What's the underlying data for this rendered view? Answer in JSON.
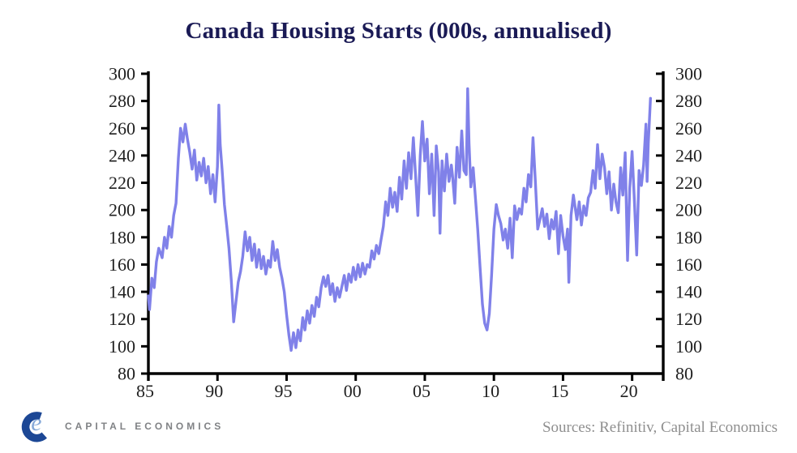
{
  "title": "Canada Housing Starts (000s, annualised)",
  "footer": {
    "logo_text": "CAPITAL ECONOMICS",
    "sources": "Sources: Refinitiv, Capital Economics"
  },
  "colors": {
    "line": "#8081e9",
    "title": "#1a1a55",
    "axis": "#000000",
    "tick_label": "#1f1f1f",
    "sources_text": "#8f8f8f",
    "logo_c": "#1c4795",
    "logo_e": "#85a8d8",
    "logo_wordmark": "#808285"
  },
  "chart_data": {
    "type": "line",
    "title": "Canada Housing Starts (000s, annualised)",
    "xlabel": "",
    "ylabel": "",
    "xlim": [
      1985,
      2022.25
    ],
    "ylim": [
      80,
      300
    ],
    "yticks": [
      80,
      100,
      120,
      140,
      160,
      180,
      200,
      220,
      240,
      260,
      280,
      300
    ],
    "xtick_years": [
      1985,
      1990,
      1995,
      2000,
      2005,
      2010,
      2015,
      2020
    ],
    "xtick_labels": [
      "85",
      "90",
      "95",
      "00",
      "05",
      "10",
      "15",
      "20"
    ],
    "grid": false,
    "legend": "none",
    "dual_y_axis": true,
    "series": [
      {
        "name": "Canada housing starts (000s, annualised)",
        "points": [
          [
            1985,
            137
          ],
          [
            1985.08,
            127
          ],
          [
            1985.25,
            150
          ],
          [
            1985.42,
            143
          ],
          [
            1985.58,
            162
          ],
          [
            1985.75,
            172
          ],
          [
            1986,
            165
          ],
          [
            1986.17,
            180
          ],
          [
            1986.33,
            172
          ],
          [
            1986.5,
            188
          ],
          [
            1986.67,
            180
          ],
          [
            1986.83,
            196
          ],
          [
            1987,
            205
          ],
          [
            1987.17,
            238
          ],
          [
            1987.33,
            260
          ],
          [
            1987.5,
            250
          ],
          [
            1987.67,
            263
          ],
          [
            1987.83,
            252
          ],
          [
            1988,
            242
          ],
          [
            1988.17,
            230
          ],
          [
            1988.33,
            244
          ],
          [
            1988.5,
            222
          ],
          [
            1988.67,
            235
          ],
          [
            1988.83,
            225
          ],
          [
            1989,
            238
          ],
          [
            1989.17,
            220
          ],
          [
            1989.33,
            232
          ],
          [
            1989.5,
            212
          ],
          [
            1989.67,
            226
          ],
          [
            1989.83,
            206
          ],
          [
            1990,
            232
          ],
          [
            1990.1,
            277
          ],
          [
            1990.2,
            248
          ],
          [
            1990.33,
            230
          ],
          [
            1990.5,
            204
          ],
          [
            1990.67,
            188
          ],
          [
            1990.83,
            172
          ],
          [
            1991,
            148
          ],
          [
            1991.17,
            118
          ],
          [
            1991.33,
            132
          ],
          [
            1991.5,
            147
          ],
          [
            1991.67,
            155
          ],
          [
            1991.83,
            166
          ],
          [
            1992,
            184
          ],
          [
            1992.17,
            170
          ],
          [
            1992.33,
            180
          ],
          [
            1992.5,
            163
          ],
          [
            1992.67,
            175
          ],
          [
            1992.83,
            158
          ],
          [
            1993,
            171
          ],
          [
            1993.17,
            157
          ],
          [
            1993.33,
            166
          ],
          [
            1993.5,
            153
          ],
          [
            1993.67,
            163
          ],
          [
            1993.83,
            158
          ],
          [
            1994,
            177
          ],
          [
            1994.17,
            163
          ],
          [
            1994.33,
            171
          ],
          [
            1994.5,
            158
          ],
          [
            1994.67,
            150
          ],
          [
            1994.83,
            140
          ],
          [
            1995,
            123
          ],
          [
            1995.17,
            108
          ],
          [
            1995.33,
            97
          ],
          [
            1995.5,
            110
          ],
          [
            1995.67,
            99
          ],
          [
            1995.83,
            112
          ],
          [
            1996,
            104
          ],
          [
            1996.17,
            121
          ],
          [
            1996.33,
            112
          ],
          [
            1996.5,
            126
          ],
          [
            1996.67,
            117
          ],
          [
            1996.83,
            130
          ],
          [
            1997,
            122
          ],
          [
            1997.17,
            136
          ],
          [
            1997.33,
            129
          ],
          [
            1997.5,
            143
          ],
          [
            1997.67,
            151
          ],
          [
            1997.83,
            144
          ],
          [
            1998,
            152
          ],
          [
            1998.17,
            138
          ],
          [
            1998.33,
            146
          ],
          [
            1998.5,
            133
          ],
          [
            1998.67,
            143
          ],
          [
            1998.83,
            136
          ],
          [
            1999,
            144
          ],
          [
            1999.17,
            152
          ],
          [
            1999.33,
            141
          ],
          [
            1999.5,
            153
          ],
          [
            1999.67,
            147
          ],
          [
            1999.83,
            158
          ],
          [
            2000,
            149
          ],
          [
            2000.17,
            160
          ],
          [
            2000.33,
            151
          ],
          [
            2000.5,
            161
          ],
          [
            2000.67,
            153
          ],
          [
            2000.83,
            160
          ],
          [
            2001,
            158
          ],
          [
            2001.17,
            170
          ],
          [
            2001.33,
            164
          ],
          [
            2001.5,
            174
          ],
          [
            2001.67,
            168
          ],
          [
            2001.83,
            178
          ],
          [
            2002,
            188
          ],
          [
            2002.17,
            206
          ],
          [
            2002.33,
            196
          ],
          [
            2002.5,
            216
          ],
          [
            2002.67,
            202
          ],
          [
            2002.83,
            213
          ],
          [
            2003,
            199
          ],
          [
            2003.17,
            224
          ],
          [
            2003.33,
            208
          ],
          [
            2003.5,
            236
          ],
          [
            2003.67,
            216
          ],
          [
            2003.83,
            242
          ],
          [
            2004,
            223
          ],
          [
            2004.17,
            253
          ],
          [
            2004.33,
            226
          ],
          [
            2004.5,
            196
          ],
          [
            2004.67,
            240
          ],
          [
            2004.83,
            265
          ],
          [
            2005,
            236
          ],
          [
            2005.17,
            252
          ],
          [
            2005.33,
            212
          ],
          [
            2005.5,
            241
          ],
          [
            2005.67,
            196
          ],
          [
            2005.83,
            247
          ],
          [
            2006,
            228
          ],
          [
            2006.1,
            183
          ],
          [
            2006.25,
            236
          ],
          [
            2006.42,
            214
          ],
          [
            2006.58,
            241
          ],
          [
            2006.75,
            221
          ],
          [
            2006.92,
            233
          ],
          [
            2007,
            226
          ],
          [
            2007.17,
            205
          ],
          [
            2007.33,
            246
          ],
          [
            2007.5,
            224
          ],
          [
            2007.67,
            258
          ],
          [
            2007.83,
            229
          ],
          [
            2008,
            226
          ],
          [
            2008.1,
            289
          ],
          [
            2008.2,
            249
          ],
          [
            2008.33,
            217
          ],
          [
            2008.5,
            231
          ],
          [
            2008.67,
            208
          ],
          [
            2008.83,
            186
          ],
          [
            2009,
            158
          ],
          [
            2009.17,
            131
          ],
          [
            2009.33,
            117
          ],
          [
            2009.5,
            112
          ],
          [
            2009.67,
            124
          ],
          [
            2009.83,
            152
          ],
          [
            2010,
            186
          ],
          [
            2010.17,
            204
          ],
          [
            2010.33,
            196
          ],
          [
            2010.5,
            190
          ],
          [
            2010.67,
            178
          ],
          [
            2010.83,
            186
          ],
          [
            2011,
            172
          ],
          [
            2011.17,
            194
          ],
          [
            2011.33,
            165
          ],
          [
            2011.5,
            203
          ],
          [
            2011.67,
            193
          ],
          [
            2011.83,
            201
          ],
          [
            2012,
            197
          ],
          [
            2012.17,
            216
          ],
          [
            2012.33,
            206
          ],
          [
            2012.5,
            226
          ],
          [
            2012.67,
            217
          ],
          [
            2012.83,
            253
          ],
          [
            2013,
            221
          ],
          [
            2013.17,
            186
          ],
          [
            2013.33,
            193
          ],
          [
            2013.5,
            201
          ],
          [
            2013.67,
            188
          ],
          [
            2013.83,
            197
          ],
          [
            2014,
            179
          ],
          [
            2014.17,
            193
          ],
          [
            2014.33,
            186
          ],
          [
            2014.5,
            199
          ],
          [
            2014.67,
            168
          ],
          [
            2014.83,
            196
          ],
          [
            2015,
            181
          ],
          [
            2015.17,
            171
          ],
          [
            2015.33,
            186
          ],
          [
            2015.42,
            147
          ],
          [
            2015.58,
            196
          ],
          [
            2015.75,
            211
          ],
          [
            2016,
            193
          ],
          [
            2016.17,
            206
          ],
          [
            2016.33,
            189
          ],
          [
            2016.5,
            203
          ],
          [
            2016.67,
            196
          ],
          [
            2016.83,
            209
          ],
          [
            2017,
            213
          ],
          [
            2017.17,
            229
          ],
          [
            2017.33,
            216
          ],
          [
            2017.5,
            248
          ],
          [
            2017.67,
            223
          ],
          [
            2017.83,
            241
          ],
          [
            2018,
            231
          ],
          [
            2018.17,
            212
          ],
          [
            2018.33,
            228
          ],
          [
            2018.5,
            200
          ],
          [
            2018.67,
            219
          ],
          [
            2018.83,
            206
          ],
          [
            2019,
            198
          ],
          [
            2019.17,
            231
          ],
          [
            2019.33,
            211
          ],
          [
            2019.5,
            242
          ],
          [
            2019.67,
            163
          ],
          [
            2019.83,
            216
          ],
          [
            2020,
            243
          ],
          [
            2020.17,
            206
          ],
          [
            2020.33,
            167
          ],
          [
            2020.5,
            229
          ],
          [
            2020.67,
            218
          ],
          [
            2020.83,
            233
          ],
          [
            2021,
            263
          ],
          [
            2021.08,
            221
          ],
          [
            2021.17,
            249
          ],
          [
            2021.33,
            282
          ]
        ]
      }
    ]
  }
}
